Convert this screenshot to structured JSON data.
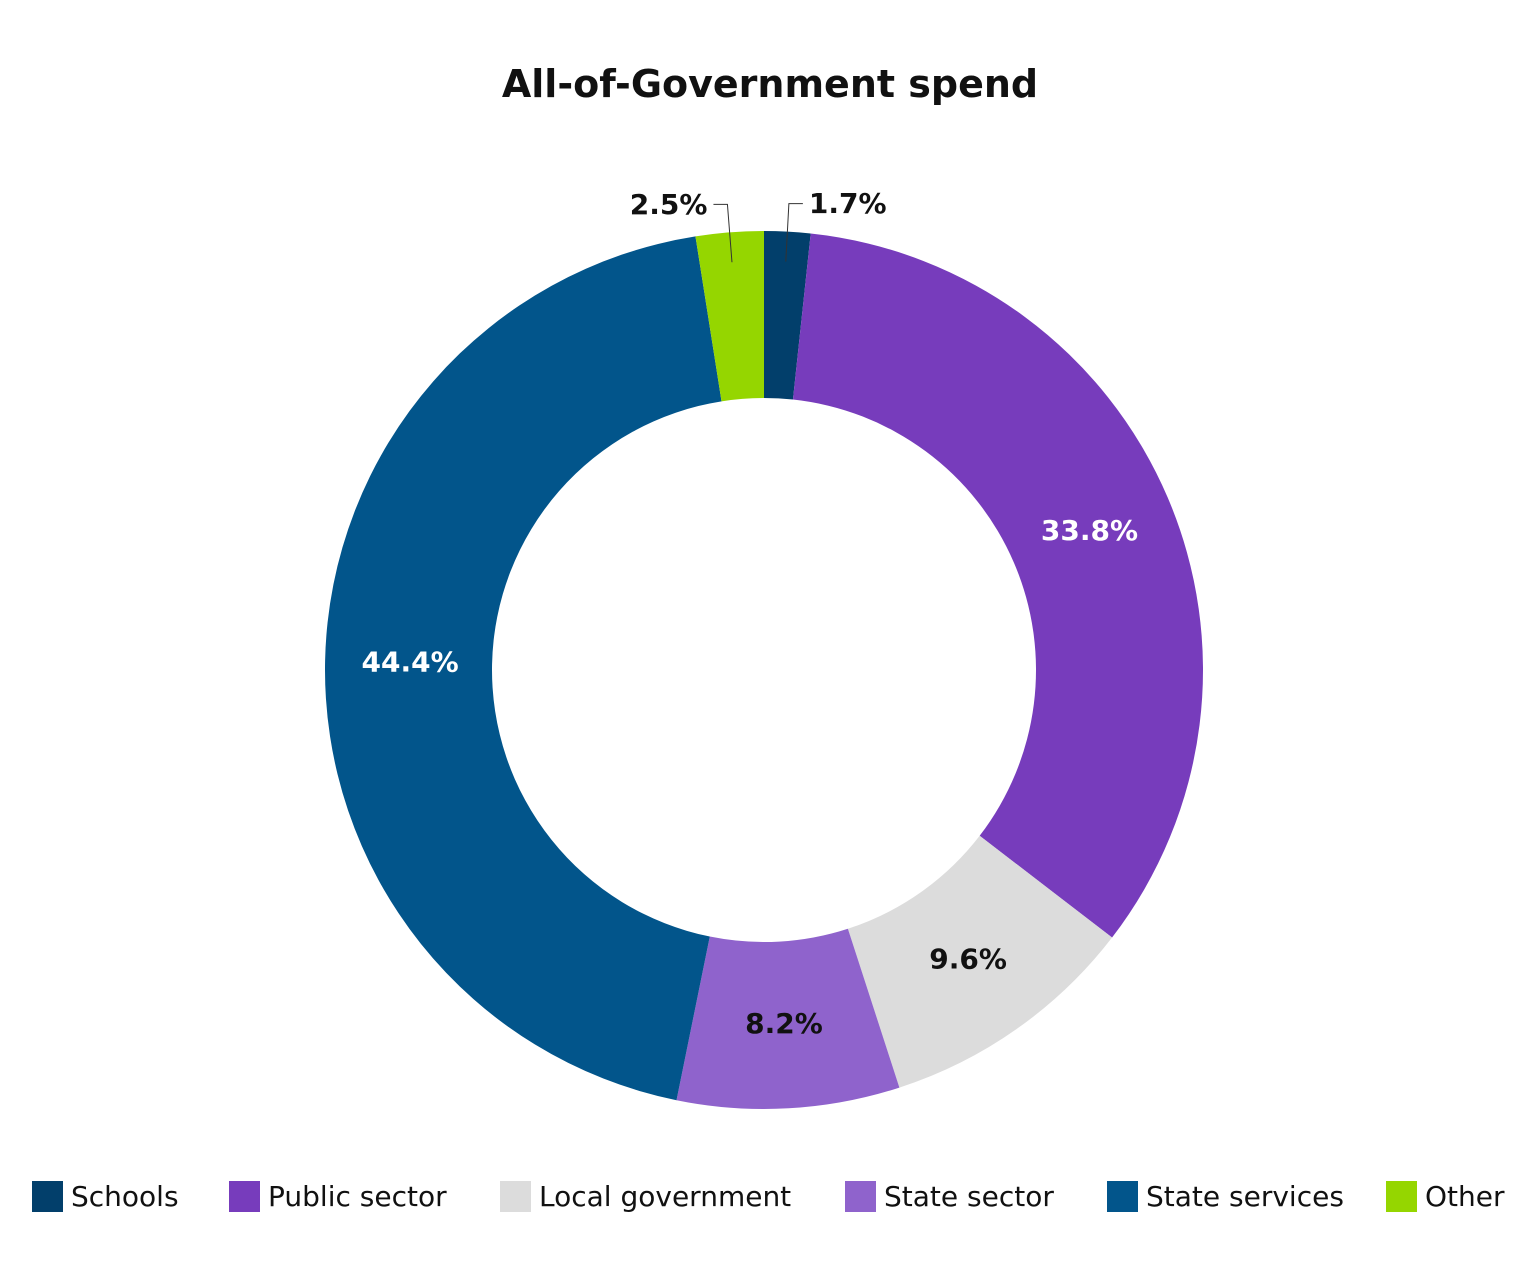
{
  "chart_data": {
    "type": "pie",
    "donut": true,
    "title": "All-of-Government spend",
    "slices": [
      {
        "name": "Schools",
        "value": 1.7,
        "label": "1.7%",
        "color": "#023F6B",
        "label_color": "#111111",
        "label_style": "outside"
      },
      {
        "name": "Public sector",
        "value": 33.8,
        "label": "33.8%",
        "color": "#773CBC",
        "label_color": "#ffffff",
        "label_style": "inside"
      },
      {
        "name": "Local government",
        "value": 9.6,
        "label": "9.6%",
        "color": "#DCDCDC",
        "label_color": "#111111",
        "label_style": "inside"
      },
      {
        "name": "State sector",
        "value": 8.2,
        "label": "8.2%",
        "color": "#8F63CC",
        "label_color": "#111111",
        "label_style": "inside"
      },
      {
        "name": "State services",
        "value": 44.4,
        "label": "44.4%",
        "color": "#02558B",
        "label_color": "#ffffff",
        "label_style": "inside"
      },
      {
        "name": "Other",
        "value": 2.5,
        "label": "2.5%",
        "color": "#95D600",
        "label_color": "#111111",
        "label_style": "outside"
      }
    ],
    "legend_position": "bottom"
  }
}
